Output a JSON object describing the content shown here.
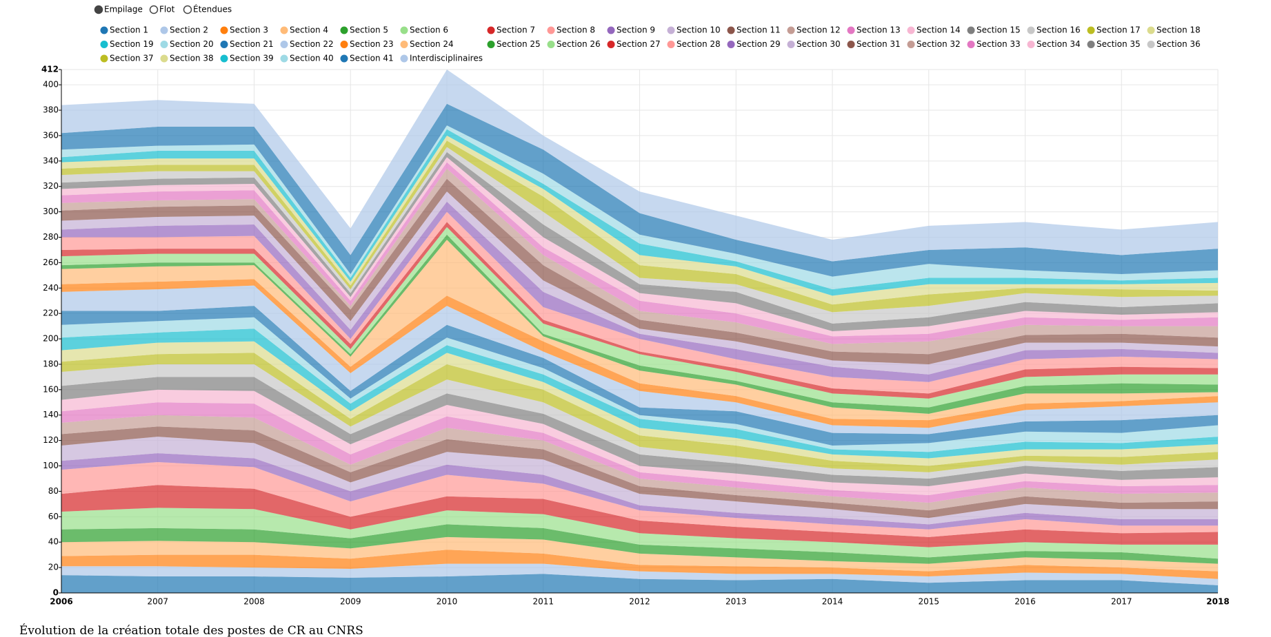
{
  "modes": [
    "Empilage",
    "Flot",
    "Étendues"
  ],
  "chart_data": {
    "type": "stacked-area",
    "caption": "Évolution de la création totale des postes de CR au CNRS",
    "x": [
      2006,
      2007,
      2008,
      2009,
      2010,
      2011,
      2012,
      2013,
      2014,
      2015,
      2016,
      2017,
      2018
    ],
    "xlim": [
      2006,
      2018
    ],
    "xticks": [
      2006,
      2007,
      2008,
      2009,
      2010,
      2011,
      2012,
      2013,
      2014,
      2015,
      2016,
      2017,
      2018
    ],
    "ylim": [
      0,
      412
    ],
    "yticks": [
      0,
      20,
      40,
      60,
      80,
      100,
      120,
      140,
      160,
      180,
      200,
      220,
      240,
      260,
      280,
      300,
      320,
      340,
      360,
      380,
      400,
      412
    ],
    "grid": true,
    "series": [
      {
        "name": "Section 1",
        "color": "#1f77b4",
        "values": [
          14,
          13,
          13,
          12,
          13,
          15,
          11,
          10,
          11,
          8,
          10,
          10,
          6
        ]
      },
      {
        "name": "Section 2",
        "color": "#aec7e8",
        "values": [
          7,
          8,
          7,
          7,
          10,
          8,
          6,
          5,
          4,
          5,
          6,
          5,
          5
        ]
      },
      {
        "name": "Section 3",
        "color": "#ff7f0e",
        "values": [
          8,
          9,
          10,
          8,
          11,
          8,
          5,
          6,
          5,
          4,
          6,
          5,
          6
        ]
      },
      {
        "name": "Section 4",
        "color": "#ffbb78",
        "values": [
          11,
          11,
          10,
          8,
          10,
          11,
          9,
          7,
          5,
          6,
          6,
          6,
          6
        ]
      },
      {
        "name": "Section 5",
        "color": "#2ca02c",
        "values": [
          10,
          10,
          10,
          8,
          10,
          9,
          7,
          7,
          7,
          5,
          5,
          6,
          4
        ]
      },
      {
        "name": "Section 6",
        "color": "#98df8a",
        "values": [
          14,
          16,
          16,
          7,
          11,
          11,
          9,
          8,
          8,
          8,
          7,
          6,
          11
        ]
      },
      {
        "name": "Section 7",
        "color": "#d62728",
        "values": [
          14,
          18,
          16,
          10,
          11,
          12,
          10,
          9,
          8,
          8,
          10,
          9,
          10
        ]
      },
      {
        "name": "Section 8",
        "color": "#ff9896",
        "values": [
          19,
          18,
          17,
          12,
          17,
          12,
          8,
          7,
          6,
          6,
          8,
          6,
          5
        ]
      },
      {
        "name": "Section 9",
        "color": "#9467bd",
        "values": [
          7,
          7,
          7,
          8,
          8,
          7,
          4,
          4,
          5,
          4,
          5,
          5,
          5
        ]
      },
      {
        "name": "Section 10",
        "color": "#c5b0d5",
        "values": [
          12,
          13,
          12,
          7,
          10,
          12,
          9,
          9,
          7,
          5,
          7,
          8,
          8
        ]
      },
      {
        "name": "Section 11",
        "color": "#8c564b",
        "values": [
          9,
          8,
          10,
          8,
          10,
          8,
          6,
          5,
          5,
          6,
          6,
          5,
          6
        ]
      },
      {
        "name": "Section 12",
        "color": "#c49c94",
        "values": [
          9,
          9,
          10,
          6,
          9,
          7,
          6,
          6,
          5,
          6,
          7,
          7,
          7
        ]
      },
      {
        "name": "Section 13",
        "color": "#e377c2",
        "values": [
          9,
          10,
          11,
          8,
          9,
          6,
          5,
          5,
          5,
          6,
          5,
          6,
          6
        ]
      },
      {
        "name": "Section 14",
        "color": "#f7b6d2",
        "values": [
          9,
          10,
          10,
          8,
          9,
          7,
          5,
          6,
          6,
          7,
          6,
          5,
          6
        ]
      },
      {
        "name": "Section 15",
        "color": "#7f7f7f",
        "values": [
          11,
          10,
          11,
          8,
          9,
          8,
          9,
          8,
          6,
          6,
          6,
          7,
          8
        ]
      },
      {
        "name": "Section 16",
        "color": "#c7c7c7",
        "values": [
          11,
          10,
          10,
          6,
          11,
          9,
          6,
          5,
          5,
          5,
          4,
          5,
          6
        ]
      },
      {
        "name": "Section 17",
        "color": "#bcbd22",
        "values": [
          8,
          8,
          9,
          6,
          12,
          10,
          9,
          9,
          6,
          5,
          4,
          6,
          6
        ]
      },
      {
        "name": "Section 18",
        "color": "#dbdb8d",
        "values": [
          9,
          9,
          9,
          6,
          9,
          6,
          6,
          6,
          5,
          6,
          5,
          6,
          6
        ]
      },
      {
        "name": "Section 19",
        "color": "#17becf",
        "values": [
          10,
          8,
          10,
          6,
          6,
          6,
          7,
          7,
          4,
          5,
          6,
          5,
          6
        ]
      },
      {
        "name": "Section 20",
        "color": "#9edae5",
        "values": [
          10,
          9,
          9,
          4,
          6,
          5,
          3,
          4,
          3,
          7,
          8,
          8,
          9
        ]
      },
      {
        "name": "Section 21",
        "color": "#1f77b4",
        "values": [
          11,
          8,
          9,
          6,
          10,
          8,
          6,
          10,
          10,
          7,
          8,
          10,
          8
        ]
      },
      {
        "name": "Section 22",
        "color": "#aec7e8",
        "values": [
          15,
          17,
          16,
          14,
          15,
          5,
          13,
          7,
          6,
          5,
          9,
          11,
          10
        ]
      },
      {
        "name": "Section 23",
        "color": "#ff7f0e",
        "values": [
          6,
          6,
          5,
          5,
          8,
          8,
          6,
          5,
          5,
          6,
          5,
          4,
          5
        ]
      },
      {
        "name": "Section 24",
        "color": "#ffbb78",
        "values": [
          12,
          12,
          11,
          8,
          44,
          4,
          10,
          9,
          9,
          5,
          8,
          6,
          3
        ]
      },
      {
        "name": "Section 25",
        "color": "#2ca02c",
        "values": [
          3,
          3,
          2,
          2,
          4,
          2,
          4,
          3,
          4,
          5,
          6,
          8,
          6
        ]
      },
      {
        "name": "Section 26",
        "color": "#98df8a",
        "values": [
          7,
          7,
          7,
          4,
          6,
          8,
          9,
          7,
          7,
          7,
          7,
          7,
          8
        ]
      },
      {
        "name": "Section 27",
        "color": "#d62728",
        "values": [
          5,
          4,
          4,
          4,
          4,
          3,
          2,
          3,
          4,
          4,
          6,
          6,
          5
        ]
      },
      {
        "name": "Section 28",
        "color": "#ff9896",
        "values": [
          10,
          9,
          10,
          4,
          8,
          10,
          10,
          7,
          9,
          9,
          8,
          8,
          7
        ]
      },
      {
        "name": "Section 29",
        "color": "#9467bd",
        "values": [
          6,
          9,
          9,
          7,
          8,
          12,
          4,
          8,
          8,
          6,
          7,
          6,
          5
        ]
      },
      {
        "name": "Section 30",
        "color": "#c5b0d5",
        "values": [
          7,
          7,
          7,
          7,
          8,
          9,
          4,
          6,
          5,
          8,
          6,
          5,
          5
        ]
      },
      {
        "name": "Section 31",
        "color": "#8c564b",
        "values": [
          8,
          8,
          8,
          9,
          10,
          12,
          7,
          7,
          7,
          8,
          6,
          7,
          7
        ]
      },
      {
        "name": "Section 32",
        "color": "#c49c94",
        "values": [
          6,
          5,
          5,
          3,
          8,
          8,
          7,
          8,
          6,
          10,
          8,
          6,
          9
        ]
      },
      {
        "name": "Section 33",
        "color": "#e377c2",
        "values": [
          6,
          7,
          7,
          4,
          5,
          6,
          8,
          7,
          6,
          6,
          6,
          5,
          7
        ]
      },
      {
        "name": "Section 34",
        "color": "#f7b6d2",
        "values": [
          5,
          5,
          5,
          3,
          4,
          8,
          6,
          8,
          4,
          6,
          5,
          4,
          4
        ]
      },
      {
        "name": "Section 35",
        "color": "#7f7f7f",
        "values": [
          5,
          5,
          5,
          3,
          4,
          10,
          7,
          9,
          6,
          7,
          7,
          6,
          7
        ]
      },
      {
        "name": "Section 36",
        "color": "#c7c7c7",
        "values": [
          6,
          6,
          5,
          3,
          4,
          10,
          5,
          6,
          9,
          9,
          7,
          8,
          6
        ]
      },
      {
        "name": "Section 37",
        "color": "#bcbd22",
        "values": [
          5,
          5,
          5,
          3,
          5,
          12,
          10,
          8,
          6,
          9,
          4,
          6,
          4
        ]
      },
      {
        "name": "Section 38",
        "color": "#dbdb8d",
        "values": [
          5,
          5,
          5,
          3,
          4,
          6,
          8,
          6,
          7,
          8,
          3,
          4,
          6
        ]
      },
      {
        "name": "Section 39",
        "color": "#17becf",
        "values": [
          4,
          6,
          6,
          3,
          5,
          4,
          9,
          4,
          5,
          5,
          5,
          3,
          4
        ]
      },
      {
        "name": "Section 40",
        "color": "#9edae5",
        "values": [
          6,
          4,
          5,
          3,
          3,
          8,
          7,
          6,
          10,
          11,
          6,
          5,
          6
        ]
      },
      {
        "name": "Section 41",
        "color": "#1f77b4",
        "values": [
          13,
          15,
          14,
          15,
          17,
          19,
          17,
          11,
          12,
          11,
          18,
          15,
          17
        ]
      },
      {
        "name": "Interdisciplinaires",
        "color": "#aec7e8",
        "values": [
          22,
          21,
          18,
          21,
          27,
          11,
          17,
          19,
          17,
          19,
          20,
          20,
          21
        ]
      }
    ]
  }
}
